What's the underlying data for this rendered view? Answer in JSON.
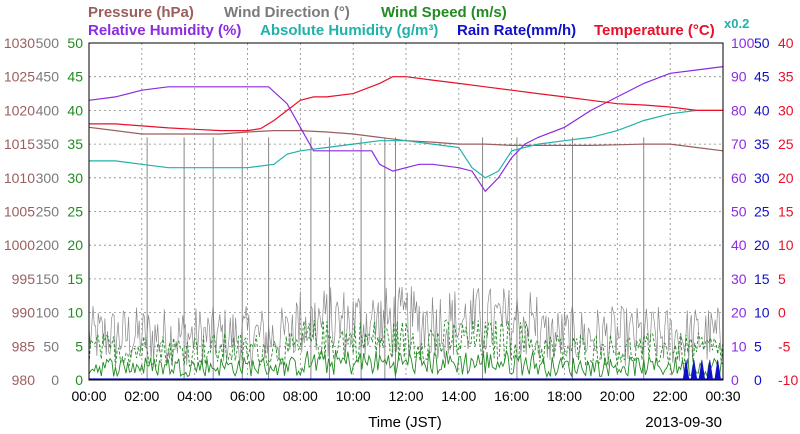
{
  "chart_data": {
    "type": "line",
    "date": "2013-09-30",
    "xlabel": "Time (JST)",
    "x_ticks": [
      "00:00",
      "02:00",
      "04:00",
      "06:00",
      "08:00",
      "10:00",
      "12:00",
      "14:00",
      "16:00",
      "18:00",
      "20:00",
      "22:00",
      "00:30"
    ],
    "x_range_hours": [
      0,
      24
    ],
    "grid": true,
    "legend_row1": [
      {
        "text": "Pressure (hPa)",
        "color": "#9b5e5e"
      },
      {
        "text": "Wind Direction (°)",
        "color": "#7a7a7a"
      },
      {
        "text": "Wind Speed (m/s)",
        "color": "#228b22"
      }
    ],
    "legend_row2": [
      {
        "text": "Relative Humidity (%)",
        "color": "#8b2be2"
      },
      {
        "text": "Absolute Humidity (g/m³)",
        "color": "#20b2aa"
      },
      {
        "text": "Rain Rate(mm/h)",
        "color": "#1010c8"
      },
      {
        "text": "Temperature (°C)",
        "color": "#e8102a"
      }
    ],
    "rain_scale_note": "x0.2",
    "axes": {
      "pressure": {
        "color": "#9b5e5e",
        "ticks": [
          "1030",
          "1025",
          "1020",
          "1015",
          "1010",
          "1005",
          "1000",
          "995",
          "990",
          "985",
          "980"
        ],
        "range": [
          980,
          1030
        ]
      },
      "wind_direction": {
        "color": "#7a7a7a",
        "ticks": [
          "500",
          "450",
          "400",
          "350",
          "300",
          "250",
          "200",
          "150",
          "100",
          "50",
          "0"
        ],
        "range": [
          0,
          500
        ]
      },
      "wind_speed": {
        "color": "#228b22",
        "ticks": [
          "50",
          "45",
          "40",
          "35",
          "30",
          "25",
          "20",
          "15",
          "10",
          "5",
          "0"
        ],
        "range": [
          0,
          50
        ]
      },
      "relative_humidity": {
        "color": "#8b2be2",
        "ticks": [
          "100",
          "90",
          "80",
          "70",
          "60",
          "50",
          "40",
          "30",
          "20",
          "10",
          "0"
        ],
        "range": [
          0,
          100
        ]
      },
      "rain_rate": {
        "color": "#1010c8",
        "ticks": [
          "50",
          "45",
          "40",
          "35",
          "30",
          "25",
          "20",
          "15",
          "10",
          "5",
          "0"
        ],
        "range": [
          0,
          50
        ]
      },
      "temperature": {
        "color": "#e8102a",
        "ticks": [
          "40",
          "35",
          "30",
          "25",
          "20",
          "15",
          "10",
          "5",
          "0",
          "-5",
          "-10"
        ],
        "range": [
          -10,
          40
        ]
      }
    },
    "series": [
      {
        "name": "Pressure (hPa)",
        "color": "#9b5e5e",
        "axis": "pressure",
        "x": [
          0,
          1,
          2,
          3,
          4,
          5,
          6,
          7,
          8,
          9,
          10,
          11,
          12,
          13,
          14,
          15,
          16,
          17,
          18,
          19,
          20,
          21,
          22,
          23,
          24
        ],
        "y": [
          1017.5,
          1017,
          1016.5,
          1016.5,
          1016.5,
          1016.5,
          1016.8,
          1017,
          1017,
          1016.8,
          1016.5,
          1016,
          1015.5,
          1015.3,
          1015,
          1015,
          1014.8,
          1014.8,
          1014.8,
          1014.8,
          1014.9,
          1015,
          1015,
          1014.5,
          1014
        ]
      },
      {
        "name": "Relative Humidity (%)",
        "color": "#8b2be2",
        "axis": "relative_humidity",
        "x": [
          0,
          1,
          2,
          3,
          4,
          5,
          6,
          6.8,
          7.5,
          8,
          8.5,
          9,
          10,
          10.7,
          11,
          11.5,
          12,
          12.5,
          13,
          14,
          14.5,
          15,
          15.5,
          16,
          16.5,
          17,
          18,
          19,
          20,
          21,
          22,
          23,
          24
        ],
        "y": [
          83,
          84,
          86,
          87,
          87,
          87,
          87,
          87,
          82,
          75,
          68,
          68,
          68,
          68,
          64,
          62,
          63,
          64,
          64,
          63,
          62,
          56,
          60,
          66,
          70,
          72,
          75,
          80,
          84,
          88,
          91,
          92,
          93
        ]
      },
      {
        "name": "Absolute Humidity (g/m³)",
        "color": "#20b2aa",
        "axis": "relative_humidity",
        "x": [
          0,
          1,
          2,
          3,
          4,
          5,
          6,
          7,
          7.5,
          8,
          9,
          10,
          11,
          12,
          13,
          14,
          14.5,
          15,
          15.5,
          16,
          17,
          18,
          19,
          20,
          21,
          22,
          23,
          24
        ],
        "y": [
          65,
          65,
          64,
          63,
          63,
          63,
          63,
          64,
          67,
          68,
          69,
          70,
          71,
          71,
          70,
          69,
          63,
          60,
          62,
          68,
          70,
          71,
          72,
          74,
          77,
          79,
          80,
          80
        ]
      },
      {
        "name": "Temperature (°C)",
        "color": "#e8102a",
        "axis": "temperature",
        "x": [
          0,
          1,
          2,
          3,
          4,
          5,
          6,
          6.5,
          7,
          7.5,
          8,
          8.5,
          9,
          10,
          11,
          11.5,
          12,
          13,
          14,
          15,
          16,
          17,
          18,
          19,
          20,
          21,
          22,
          23,
          24
        ],
        "y": [
          28,
          28,
          27.7,
          27.4,
          27.2,
          27,
          27,
          27.3,
          28.5,
          30,
          31.5,
          32,
          32,
          32.5,
          34,
          35,
          35,
          34.5,
          34,
          33.5,
          33,
          32.5,
          32,
          31.5,
          31,
          30.8,
          30.5,
          30,
          30
        ]
      }
    ],
    "wind_direction_spikes_hours": [
      2.2,
      3.6,
      4.7,
      5.8,
      6.8,
      8.4,
      9.1,
      10.3,
      11.2,
      11.6,
      14.9,
      16.2,
      18.3,
      21.0
    ],
    "wind_direction_spike_top": 360,
    "wind_speed_typical_max": 8,
    "rain_events_hours": [
      22.6,
      22.9,
      23.2,
      23.5,
      23.8
    ],
    "rain_event_peak": 3
  }
}
